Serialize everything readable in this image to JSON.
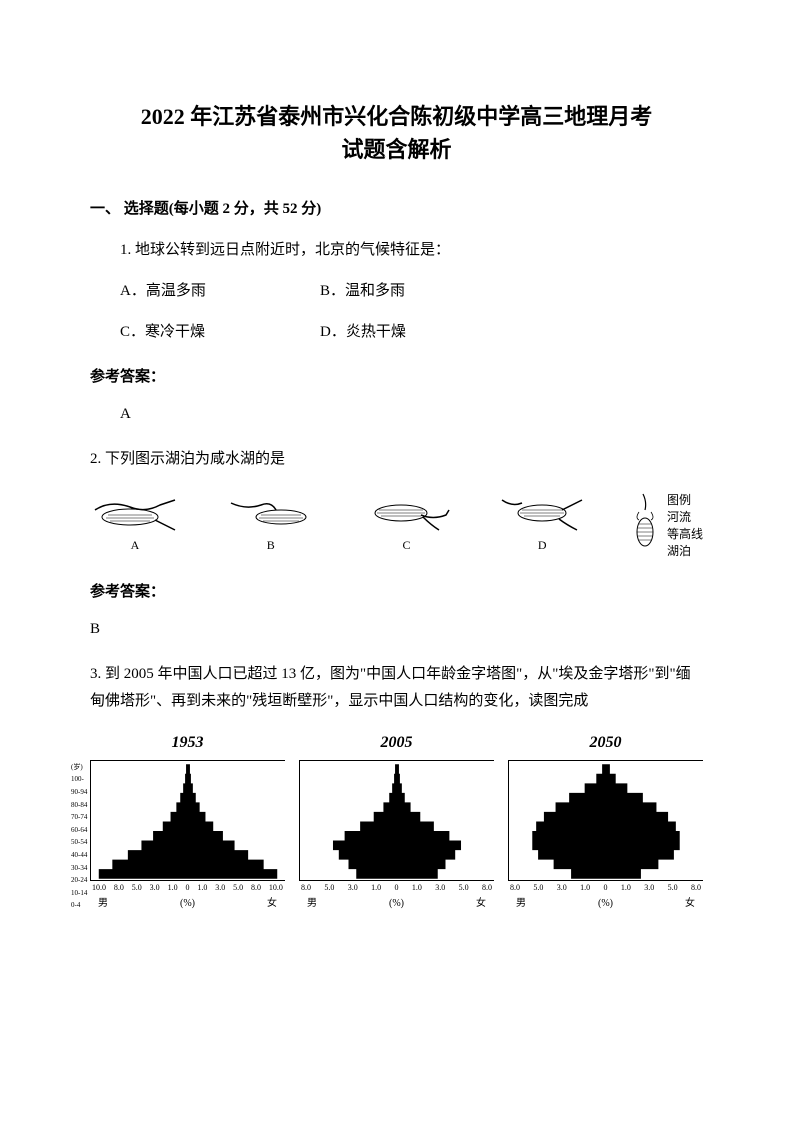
{
  "title_line1": "2022 年江苏省泰州市兴化合陈初级中学高三地理月考",
  "title_line2": "试题含解析",
  "section1": "一、 选择题(每小题 2 分，共 52 分)",
  "q1": {
    "text": "1. 地球公转到远日点附近时，北京的气候特征是：",
    "optA": "A．高温多雨",
    "optB": "B．温和多雨",
    "optC": "C．寒冷干燥",
    "optD": "D．炎热干燥",
    "answer_label": "参考答案：",
    "answer": "A"
  },
  "q2": {
    "text": "2. 下列图示湖泊为咸水湖的是",
    "lakes": [
      "A",
      "B",
      "C",
      "D"
    ],
    "legend_title": "图例",
    "legend_river": "河流",
    "legend_contour": "等高线",
    "legend_lake": "湖泊",
    "answer_label": "参考答案：",
    "answer": "B"
  },
  "q3": {
    "text": "3. 到 2005 年中国人口已超过 13 亿，图为\"中国人口年龄金字塔图\"，从\"埃及金字塔形\"到\"缅甸佛塔形\"、再到未来的\"残垣断壁形\"，显示中国人口结构的变化，读图完成",
    "yaxis_label": "(岁)",
    "yticks": [
      "100-",
      "90-94",
      "80-84",
      "70-74",
      "60-64",
      "50-54",
      "40-44",
      "30-34",
      "20-24",
      "10-14",
      "0-4"
    ],
    "xticks_left_full": [
      "10.0",
      "8.0",
      "5.0",
      "3.0",
      "1.0",
      "0"
    ],
    "xticks_right_full": [
      "1.0",
      "3.0",
      "5.0",
      "8.0",
      "10.0"
    ],
    "xticks_left_small": [
      "8.0",
      "5.0",
      "3.0",
      "1.0",
      "0"
    ],
    "xticks_right_small": [
      "1.0",
      "3.0",
      "5.0",
      "8.0"
    ],
    "xlabel_left": "男",
    "xlabel_mid": "(%)",
    "xlabel_right": "女",
    "pyramids": [
      {
        "year": "1953",
        "type": "triangle",
        "widths": [
          2,
          3,
          5,
          8,
          12,
          18,
          26,
          36,
          48,
          62,
          78,
          92
        ],
        "fill": "#000000"
      },
      {
        "year": "2005",
        "type": "buddha",
        "widths": [
          2,
          3,
          5,
          8,
          14,
          24,
          38,
          54,
          66,
          60,
          50,
          42
        ],
        "fill": "#000000"
      },
      {
        "year": "2050",
        "type": "urn",
        "widths": [
          4,
          10,
          22,
          38,
          52,
          64,
          72,
          76,
          76,
          70,
          54,
          36
        ],
        "fill": "#000000"
      }
    ]
  },
  "colors": {
    "text": "#000000",
    "bg": "#ffffff",
    "stroke": "#000000"
  }
}
